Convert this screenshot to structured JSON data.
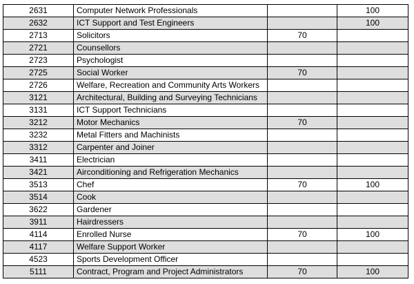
{
  "rows": [
    {
      "code": "2631",
      "occupation": "Computer Network Professionals",
      "v1": "",
      "v2": "100",
      "shaded": false
    },
    {
      "code": "2632",
      "occupation": "ICT Support and Test Engineers",
      "v1": "",
      "v2": "100",
      "shaded": true
    },
    {
      "code": "2713",
      "occupation": "Solicitors",
      "v1": "70",
      "v2": "",
      "shaded": false
    },
    {
      "code": "2721",
      "occupation": "Counsellors",
      "v1": "",
      "v2": "",
      "shaded": true
    },
    {
      "code": "2723",
      "occupation": "Psychologist",
      "v1": "",
      "v2": "",
      "shaded": false
    },
    {
      "code": "2725",
      "occupation": "Social Worker",
      "v1": "70",
      "v2": "",
      "shaded": true
    },
    {
      "code": "2726",
      "occupation": "Welfare, Recreation and Community Arts Workers",
      "v1": "",
      "v2": "",
      "shaded": false
    },
    {
      "code": "3121",
      "occupation": "Architectural, Building and Surveying Technicians",
      "v1": "",
      "v2": "",
      "shaded": true
    },
    {
      "code": "3131",
      "occupation": "ICT Support Technicians",
      "v1": "",
      "v2": "",
      "shaded": false
    },
    {
      "code": "3212",
      "occupation": "Motor Mechanics",
      "v1": "70",
      "v2": "",
      "shaded": true
    },
    {
      "code": "3232",
      "occupation": "Metal Fitters and Machinists",
      "v1": "",
      "v2": "",
      "shaded": false
    },
    {
      "code": "3312",
      "occupation": "Carpenter and Joiner",
      "v1": "",
      "v2": "",
      "shaded": true
    },
    {
      "code": "3411",
      "occupation": "Electrician",
      "v1": "",
      "v2": "",
      "shaded": false
    },
    {
      "code": "3421",
      "occupation": "Airconditioning and Refrigeration Mechanics",
      "v1": "",
      "v2": "",
      "shaded": true
    },
    {
      "code": "3513",
      "occupation": "Chef",
      "v1": "70",
      "v2": "100",
      "shaded": false
    },
    {
      "code": "3514",
      "occupation": "Cook",
      "v1": "",
      "v2": "",
      "shaded": true
    },
    {
      "code": "3622",
      "occupation": "Gardener",
      "v1": "",
      "v2": "",
      "shaded": false
    },
    {
      "code": "3911",
      "occupation": "Hairdressers",
      "v1": "",
      "v2": "",
      "shaded": true
    },
    {
      "code": "4114",
      "occupation": "Enrolled Nurse",
      "v1": "70",
      "v2": "100",
      "shaded": false
    },
    {
      "code": "4117",
      "occupation": "Welfare Support Worker",
      "v1": "",
      "v2": "",
      "shaded": true
    },
    {
      "code": "4523",
      "occupation": "Sports Development Officer",
      "v1": "",
      "v2": "",
      "shaded": false
    },
    {
      "code": "5111",
      "occupation": "Contract, Program and Project Administrators",
      "v1": "70",
      "v2": "100",
      "shaded": true
    }
  ],
  "colors": {
    "shade": "#dedede",
    "border": "#000000"
  }
}
